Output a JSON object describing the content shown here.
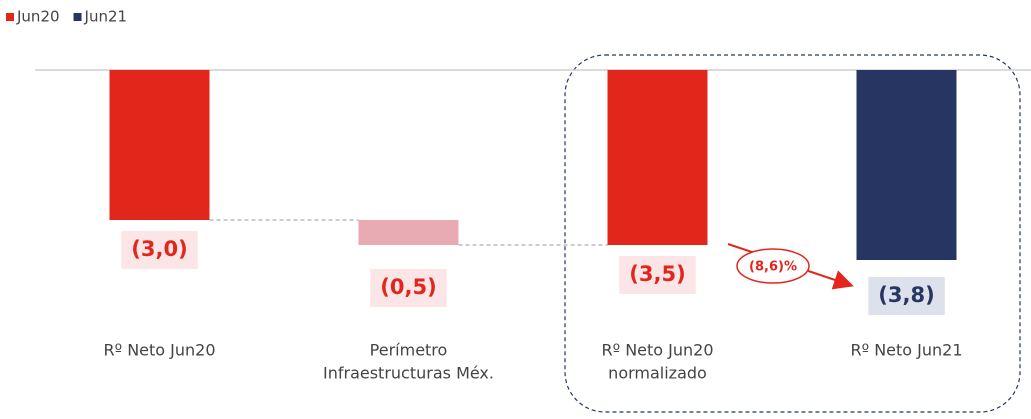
{
  "chart_data": {
    "type": "waterfall",
    "legend": [
      {
        "name": "Jun20",
        "color": "#e3261c"
      },
      {
        "name": "Jun21",
        "color": "#263562"
      }
    ],
    "legend_position": "top-left",
    "categories": [
      [
        "Rº Neto Jun20"
      ],
      [
        "Perímetro",
        "Infraestructuras Méx."
      ],
      [
        "Rº Neto Jun20",
        "normalizado"
      ],
      [
        "Rº Neto Jun21"
      ]
    ],
    "values": [
      -3.0,
      -0.5,
      -3.5,
      -3.8
    ],
    "value_labels": [
      "(3,0)",
      "(0,5)",
      "(3,5)",
      "(3,8)"
    ],
    "measure": [
      "total",
      "relative",
      "total",
      "total"
    ],
    "colors": [
      "#e3261c",
      "#e8abb3",
      "#e3261c",
      "#263562"
    ],
    "ylim": [
      -4,
      0
    ],
    "annotation": "(8,6)%"
  }
}
